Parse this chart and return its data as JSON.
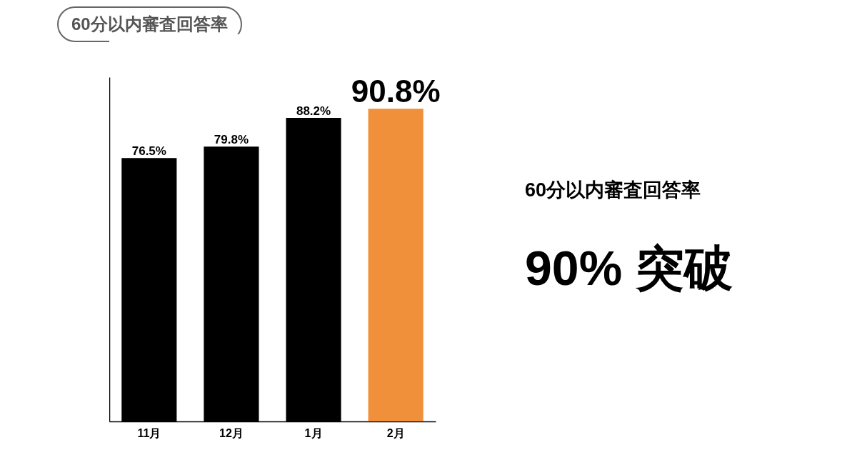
{
  "chart_data": {
    "type": "bar",
    "title": "60分以内審査回答率",
    "categories": [
      "11月",
      "12月",
      "1月",
      "2月"
    ],
    "values": [
      76.5,
      79.8,
      88.2,
      90.8
    ],
    "colors": [
      "#000000",
      "#000000",
      "#000000",
      "#f0903a"
    ],
    "value_labels": [
      "76.5%",
      "79.8%",
      "88.2%",
      "90.8%"
    ],
    "annotations": [
      "60分以内審査回答率",
      "90% 突破"
    ]
  }
}
